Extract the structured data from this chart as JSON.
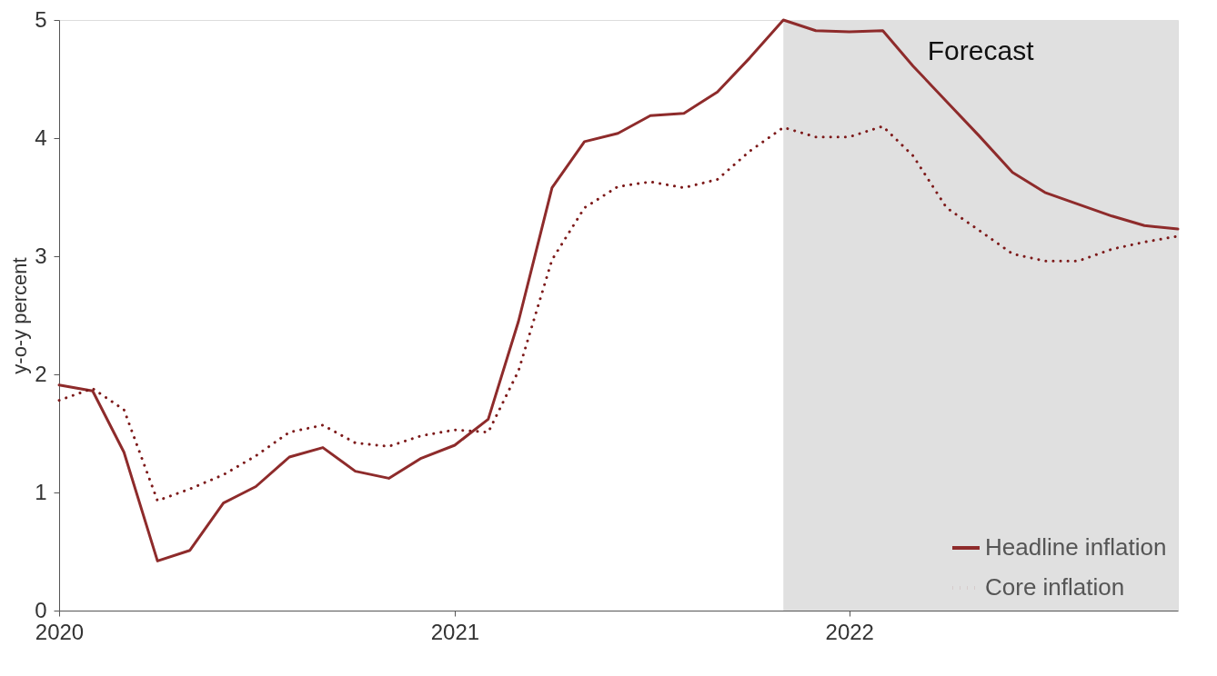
{
  "chart_data": {
    "type": "line",
    "ylabel": "y-o-y percent",
    "x": [
      "2020-01",
      "2020-02",
      "2020-03",
      "2020-04",
      "2020-05",
      "2020-06",
      "2020-07",
      "2020-08",
      "2020-09",
      "2020-10",
      "2020-11",
      "2020-12",
      "2021-01",
      "2021-02",
      "2021-03",
      "2021-04",
      "2021-05",
      "2021-06",
      "2021-07",
      "2021-08",
      "2021-09",
      "2021-10",
      "2021-11",
      "2021-12",
      "2022-01",
      "2022-02",
      "2022-03",
      "2022-04",
      "2022-05",
      "2022-06",
      "2022-07",
      "2022-08",
      "2022-09",
      "2022-10",
      "2022-11"
    ],
    "series": [
      {
        "name": "Headline inflation",
        "color": "#8e2b2b",
        "line_style": "solid",
        "values": [
          1.91,
          1.86,
          1.34,
          0.42,
          0.51,
          0.91,
          1.05,
          1.3,
          1.38,
          1.18,
          1.12,
          1.29,
          1.4,
          1.62,
          2.45,
          3.58,
          3.97,
          4.04,
          4.19,
          4.21,
          4.39,
          4.68,
          5.0,
          4.91,
          4.9,
          4.91,
          4.61,
          4.31,
          4.02,
          3.71,
          3.54,
          3.44,
          3.34,
          3.26,
          3.23
        ]
      },
      {
        "name": "Core inflation",
        "color": "#7d1a1a",
        "line_style": "dotted",
        "values": [
          1.78,
          1.88,
          1.7,
          0.93,
          1.03,
          1.15,
          1.31,
          1.51,
          1.57,
          1.42,
          1.39,
          1.48,
          1.53,
          1.51,
          2.03,
          2.97,
          3.41,
          3.59,
          3.63,
          3.58,
          3.65,
          3.89,
          4.09,
          4.01,
          4.01,
          4.1,
          3.85,
          3.41,
          3.22,
          3.02,
          2.96,
          2.96,
          3.06,
          3.12,
          3.17
        ]
      }
    ],
    "xlim": [
      "2020-01",
      "2022-11"
    ],
    "xticks": [
      "2020",
      "2021",
      "2022"
    ],
    "ylim": [
      0,
      5
    ],
    "yticks": [
      0,
      1,
      2,
      3,
      4,
      5
    ],
    "bands": [
      {
        "axis": "x",
        "from": "2021-11",
        "to": "2022-11",
        "label": "Forecast",
        "color": "#e0e0e0"
      }
    ],
    "grid": false,
    "legend": "bottom right",
    "marker": "none"
  }
}
